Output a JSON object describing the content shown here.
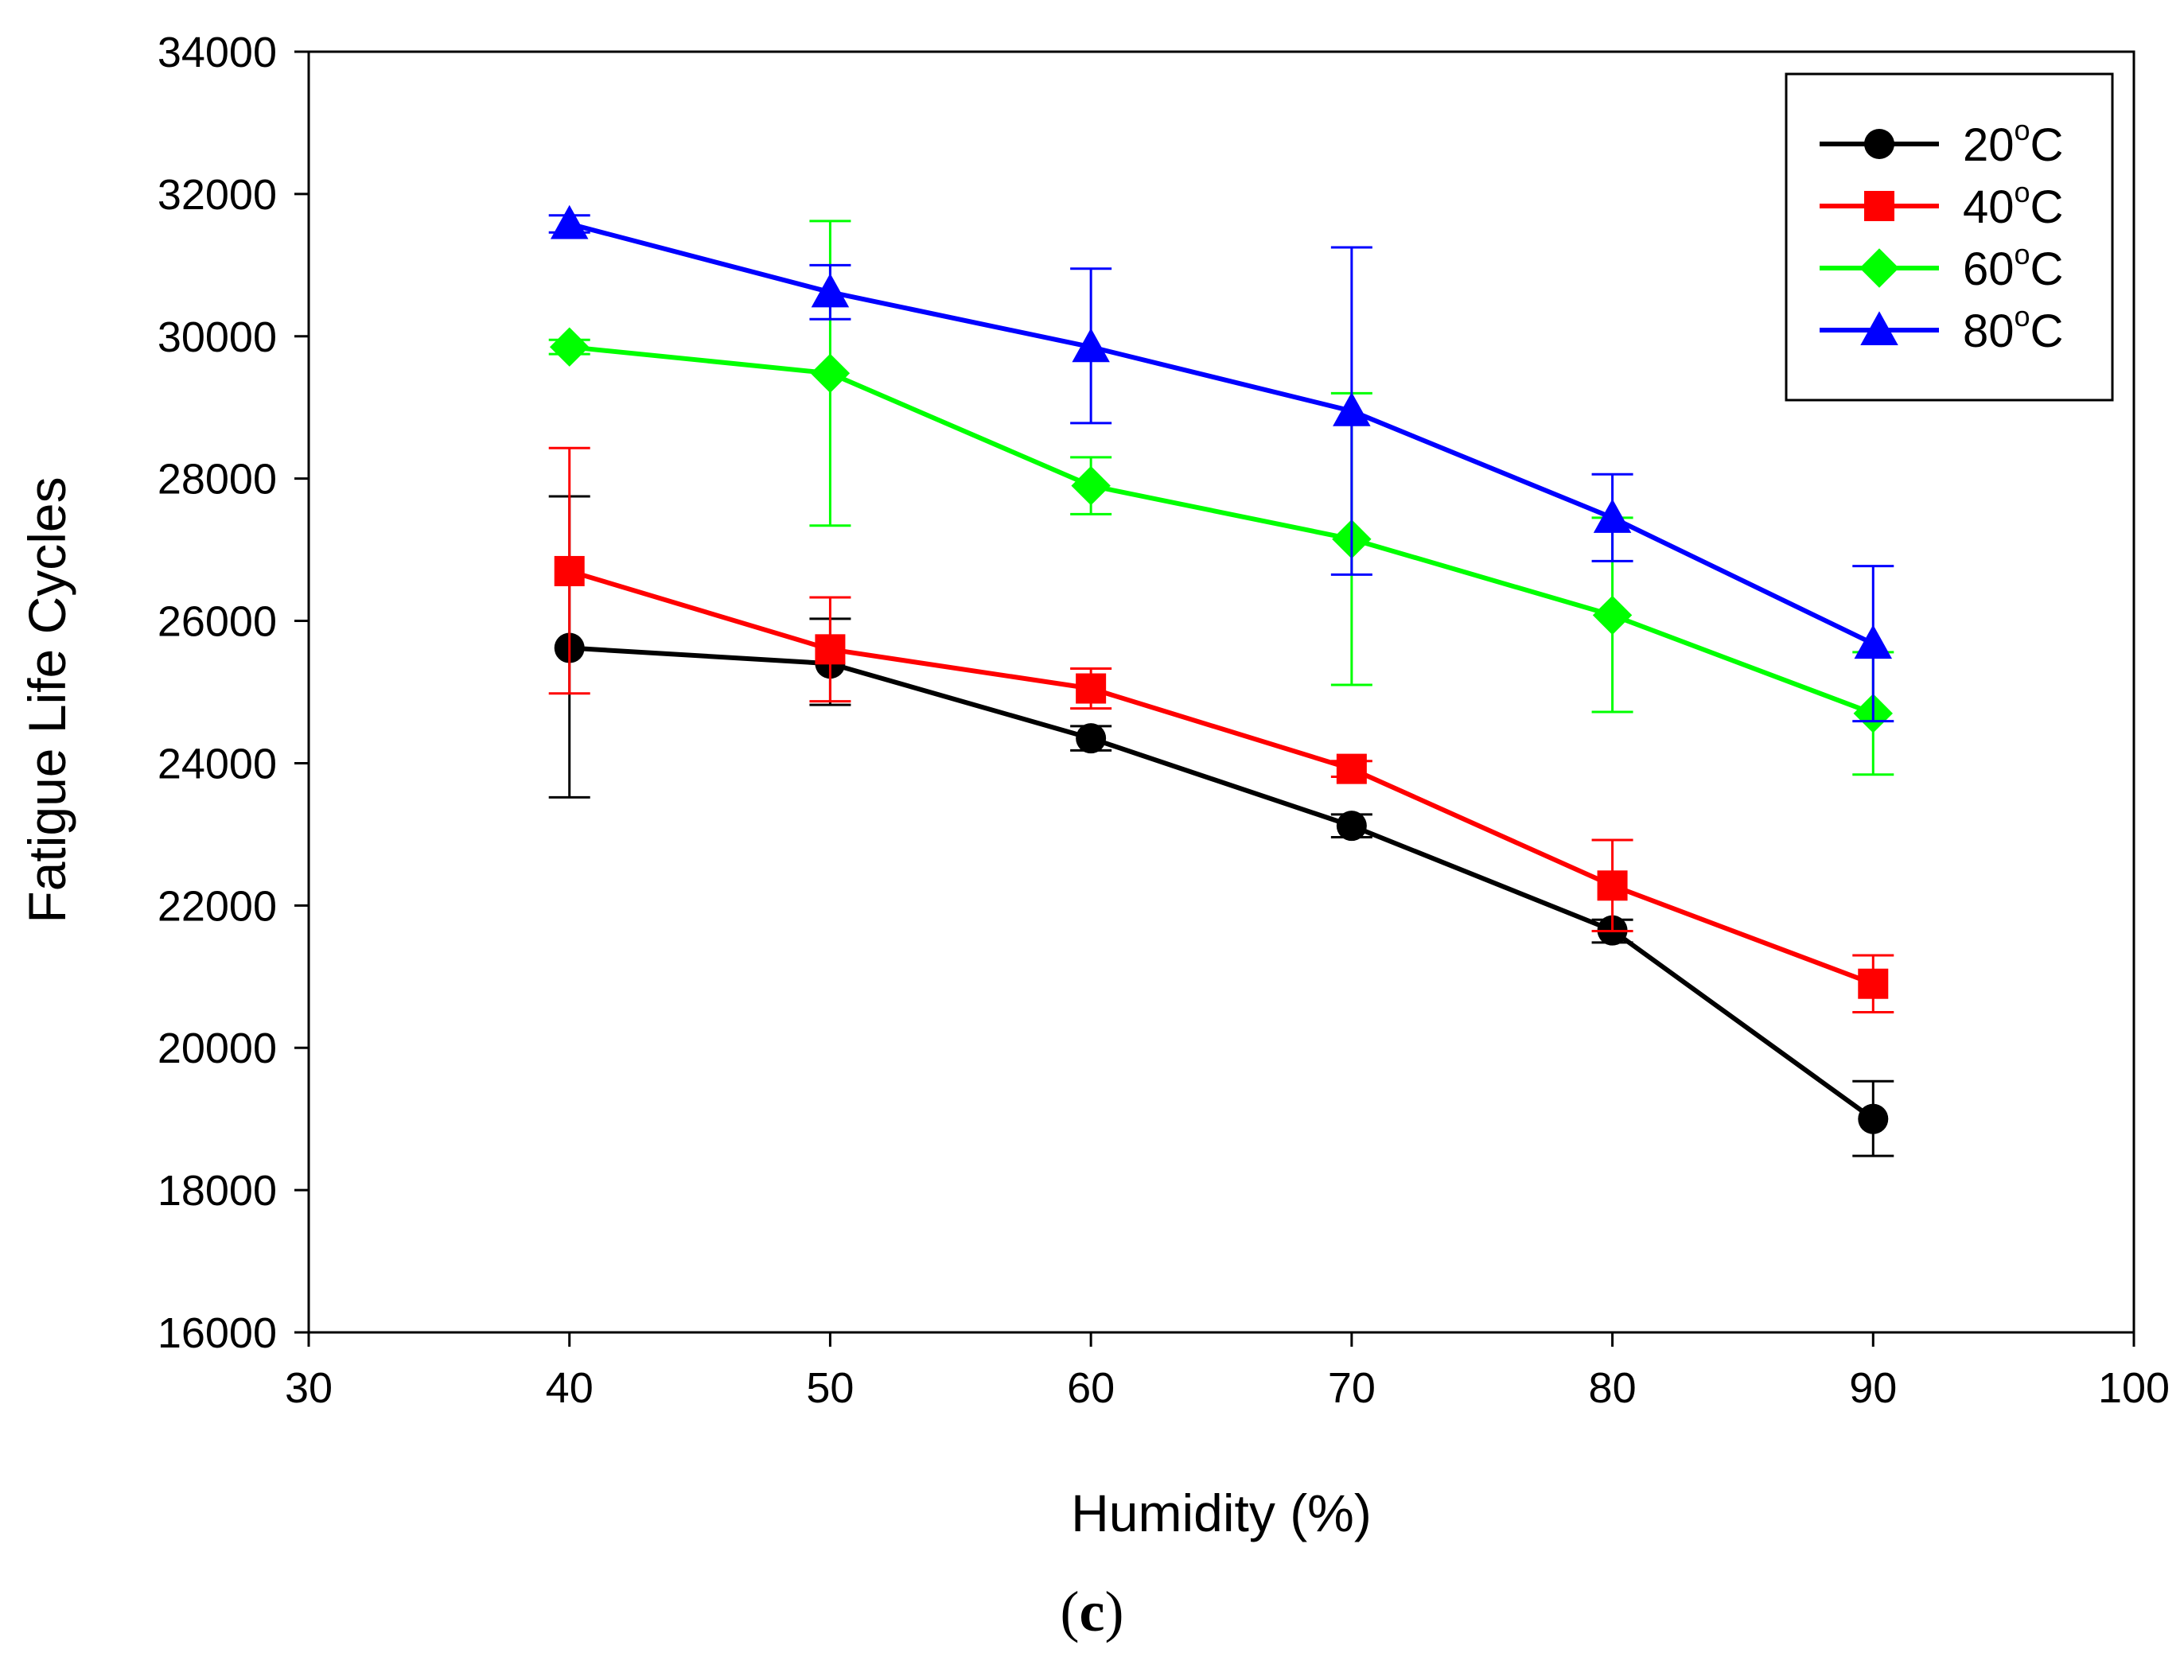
{
  "chart_data": {
    "type": "line",
    "xlabel": "Humidity (%)",
    "ylabel": "Fatigue Life Cycles",
    "xlim": [
      30,
      100
    ],
    "ylim": [
      16000,
      34000
    ],
    "xticks": [
      30,
      40,
      50,
      60,
      70,
      80,
      90,
      100
    ],
    "yticks": [
      16000,
      18000,
      20000,
      22000,
      24000,
      26000,
      28000,
      30000,
      32000,
      34000
    ],
    "x": [
      40,
      50,
      60,
      70,
      80,
      90
    ],
    "legend_position": "top-right",
    "series": [
      {
        "name": "20",
        "unit": "oC",
        "label_suffix": "C",
        "marker": "circle",
        "color": "#000000",
        "values": [
          25620,
          25400,
          24350,
          23120,
          21650,
          19000
        ],
        "err_upper": [
          27750,
          26030,
          24520,
          23280,
          21800,
          19530
        ],
        "err_lower": [
          23520,
          24820,
          24180,
          22960,
          21480,
          18480
        ]
      },
      {
        "name": "40",
        "unit": "oC",
        "label_suffix": "C",
        "marker": "square",
        "color": "#ff0000",
        "values": [
          26700,
          25600,
          25050,
          23920,
          22280,
          20900
        ],
        "err_upper": [
          28430,
          26330,
          25330,
          24030,
          22920,
          21300
        ],
        "err_lower": [
          24980,
          24870,
          24770,
          23810,
          21640,
          20500
        ]
      },
      {
        "name": "60",
        "unit": "oC",
        "label_suffix": "C",
        "marker": "diamond",
        "color": "#00ff00",
        "values": [
          29850,
          29480,
          27900,
          27150,
          26080,
          24700
        ],
        "err_upper": [
          29950,
          31620,
          28300,
          29200,
          27450,
          25560
        ],
        "err_lower": [
          29750,
          27340,
          27500,
          25100,
          24720,
          23840
        ]
      },
      {
        "name": "80",
        "unit": "oC",
        "label_suffix": "C",
        "marker": "triangle",
        "color": "#0000ff",
        "values": [
          31580,
          30620,
          29850,
          28950,
          27450,
          25680
        ],
        "err_upper": [
          31700,
          31000,
          30950,
          31250,
          28060,
          26770
        ],
        "err_lower": [
          31460,
          30240,
          28780,
          26650,
          26840,
          24590
        ]
      }
    ]
  },
  "panel_label": "c",
  "panel_paren_open": "(",
  "panel_paren_close": ")"
}
